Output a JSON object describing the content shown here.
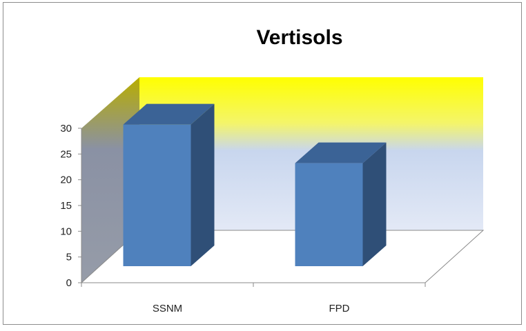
{
  "chart_data": {
    "type": "bar",
    "title": "Vertisols",
    "categories": [
      "SSNM",
      "FPD"
    ],
    "values": [
      27.5,
      20
    ],
    "ylim": [
      0,
      30
    ],
    "yticks": [
      "0",
      "5",
      "10",
      "15",
      "20",
      "25",
      "30"
    ],
    "legend": "none",
    "grid": false,
    "colors": {
      "bar_front": "#4f81bd",
      "bar_side": "#2f4f77",
      "bar_top": "#3b6396",
      "back_wall_top": "#ffff00",
      "back_wall_bottom": "#c6d4ee"
    }
  }
}
